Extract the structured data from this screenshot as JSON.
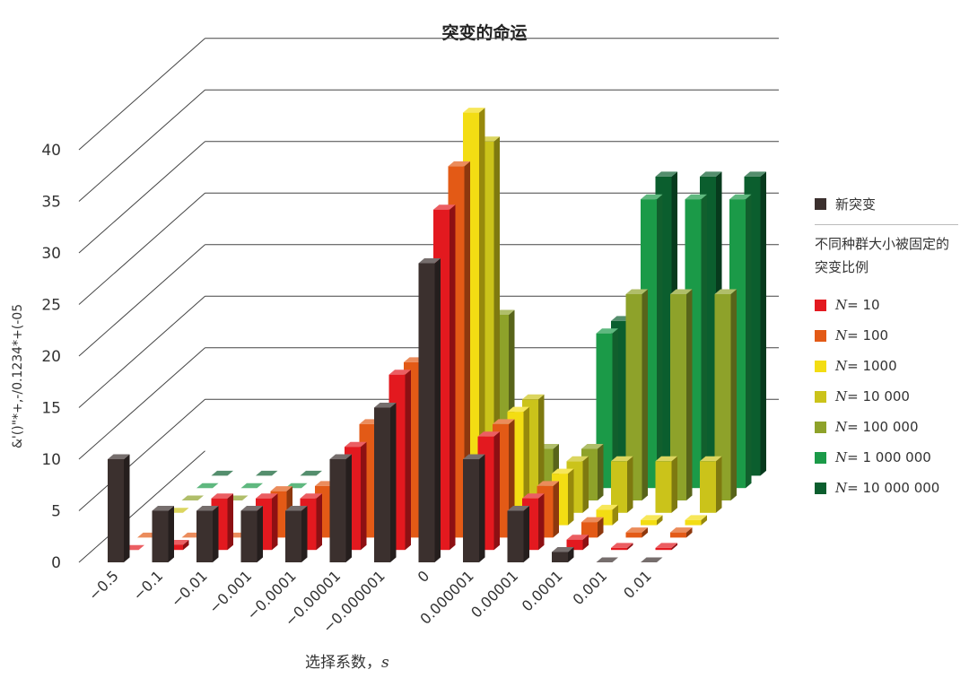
{
  "chart_data": {
    "type": "bar",
    "title": "突变的命运",
    "xlabel": "选择系数，",
    "xlabel_symbol": "s",
    "ylabel": "&'()\"*+,-/0.1234*+(-05",
    "ylim": [
      0,
      40
    ],
    "yticks": [
      "0",
      "5",
      "10",
      "15",
      "20",
      "25",
      "30",
      "35",
      "40"
    ],
    "categories": [
      "−0.5",
      "−0.1",
      "−0.01",
      "−0.001",
      "−0.0001",
      "−0.00001",
      "−0.000001",
      "0",
      "0.000001",
      "0.00001",
      "0.0001",
      "0.001",
      "0.01"
    ],
    "series": [
      {
        "name": "新突变",
        "color": "#3b302e",
        "values": [
          10,
          5,
          5,
          5,
          5,
          10,
          15,
          29,
          10,
          5,
          1,
          0,
          0
        ]
      },
      {
        "name": "N = 10",
        "color": "#e3191f",
        "values": [
          0,
          0.5,
          5,
          5,
          5,
          10,
          17,
          33,
          11,
          5,
          1,
          0.2,
          0.2
        ]
      },
      {
        "name": "N = 100",
        "color": "#e35a16",
        "values": [
          0,
          0,
          0,
          4.5,
          5,
          11,
          17,
          36,
          11,
          5,
          1.5,
          0.5,
          0.5
        ]
      },
      {
        "name": "N = 1000",
        "color": "#f3dd13",
        "values": [
          0,
          0,
          0,
          0,
          1,
          5,
          12,
          40,
          11,
          5,
          1.5,
          0.5,
          0.5
        ]
      },
      {
        "name": "N = 10 000",
        "color": "#cbc31a",
        "values": [
          0,
          0,
          0,
          0,
          0,
          0,
          0,
          36,
          11,
          5,
          5,
          5,
          5
        ]
      },
      {
        "name": "N = 100 000",
        "color": "#8ea22a",
        "values": [
          0,
          0,
          0,
          0,
          0,
          0,
          0,
          18,
          5,
          5,
          20,
          20,
          20
        ]
      },
      {
        "name": "N = 1 000 000",
        "color": "#1b9a48",
        "values": [
          0,
          0,
          0,
          0,
          0,
          0,
          0,
          0,
          0,
          15,
          28,
          28,
          28
        ]
      },
      {
        "name": "N = 10 000 000",
        "color": "#0b5e2e",
        "values": [
          0,
          0,
          0,
          0,
          0,
          0,
          0,
          0,
          0,
          15,
          29,
          29,
          29
        ]
      }
    ],
    "grid": true,
    "legend_position": "right"
  },
  "legend": {
    "new_label": "新突变",
    "subtitle": "不同种群大小被固定的突变比例",
    "items": [
      {
        "n": "N",
        "rest": " = 10",
        "color": "#e3191f"
      },
      {
        "n": "N",
        "rest": " = 100",
        "color": "#e35a16"
      },
      {
        "n": "N",
        "rest": " = 1000",
        "color": "#f3dd13"
      },
      {
        "n": "N",
        "rest": " = 10 000",
        "color": "#cbc31a"
      },
      {
        "n": "N",
        "rest": " = 100 000",
        "color": "#8ea22a"
      },
      {
        "n": "N",
        "rest": " = 1 000 000",
        "color": "#1b9a48"
      },
      {
        "n": "N",
        "rest": " = 10 000 000",
        "color": "#0b5e2e"
      }
    ]
  }
}
